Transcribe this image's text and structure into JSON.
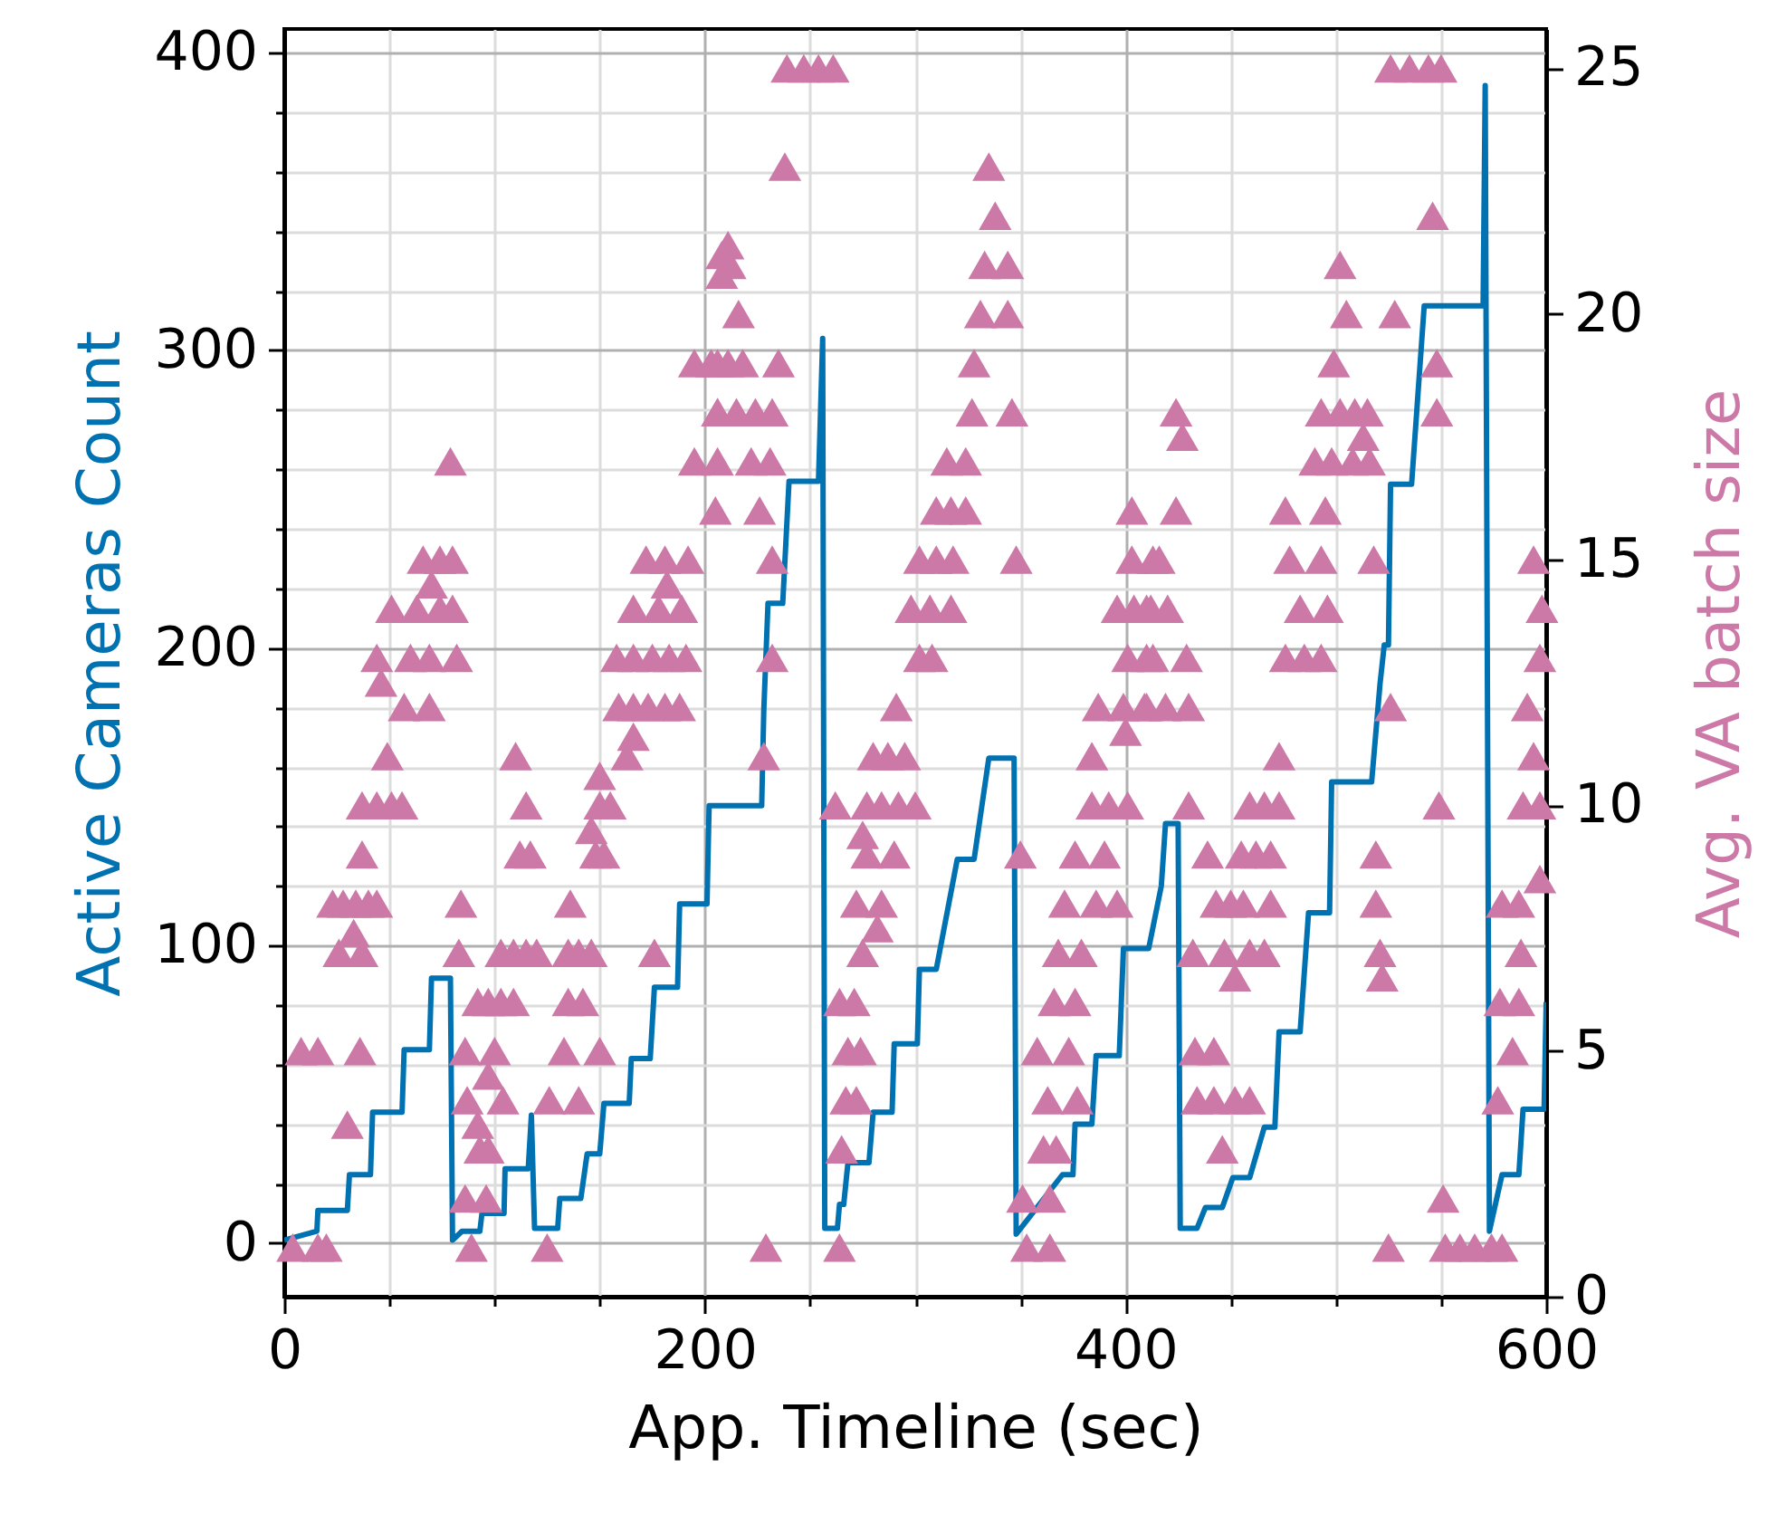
{
  "chart_data": {
    "type": "line",
    "xlabel": "App. Timeline (sec)",
    "ylabel": "Active Cameras Count",
    "y2label": "Avg. VA batch size",
    "xlim": [
      0,
      600
    ],
    "xticks": [
      0,
      {
        "value": 50,
        "label": null
      },
      {
        "value": 100,
        "label": null
      },
      {
        "value": 150,
        "label": null
      },
      200,
      {
        "value": 250,
        "label": null
      },
      {
        "value": 300,
        "label": null
      },
      {
        "value": 350,
        "label": null
      },
      400,
      {
        "value": 450,
        "label": null
      },
      {
        "value": 500,
        "label": null
      },
      {
        "value": 550,
        "label": null
      },
      600
    ],
    "ylim": [
      -18,
      408
    ],
    "yticks": [
      0,
      {
        "value": 20,
        "label": null
      },
      {
        "value": 40,
        "label": null
      },
      {
        "value": 60,
        "label": null
      },
      {
        "value": 80,
        "label": null
      },
      100,
      {
        "value": 120,
        "label": null
      },
      {
        "value": 140,
        "label": null
      },
      {
        "value": 160,
        "label": null
      },
      {
        "value": 180,
        "label": null
      },
      200,
      {
        "value": 220,
        "label": null
      },
      {
        "value": 240,
        "label": null
      },
      {
        "value": 260,
        "label": null
      },
      {
        "value": 280,
        "label": null
      },
      300,
      {
        "value": 320,
        "label": null
      },
      {
        "value": 340,
        "label": null
      },
      {
        "value": 360,
        "label": null
      },
      {
        "value": 380,
        "label": null
      },
      400
    ],
    "y2lim": [
      0,
      25.8
    ],
    "y2ticks": [
      0,
      5,
      10,
      15,
      20,
      25
    ],
    "grid": true,
    "series": [
      {
        "color": "#0072b2",
        "x": [
          0,
          15.5,
          16,
          30,
          31,
          41,
          42,
          56,
          57,
          69,
          70,
          79,
          80,
          84.5,
          93,
          94,
          104.5,
          105,
          116,
          117.5,
          119,
          130,
          131,
          141,
          144,
          150,
          152,
          164,
          165,
          174,
          176,
          187,
          188,
          201,
          202,
          227,
          228,
          230,
          237,
          240,
          254,
          256,
          257,
          263,
          264,
          266,
          268,
          278,
          280,
          289,
          290,
          301,
          302,
          310,
          320,
          328,
          335,
          347,
          348,
          370,
          375,
          376,
          384,
          386,
          397,
          399,
          411,
          417,
          419,
          425,
          426,
          434,
          438,
          446,
          451,
          459,
          466,
          471,
          473,
          483,
          487,
          497,
          498,
          517,
          521,
          523,
          525,
          526,
          536,
          542,
          570,
          571,
          573,
          579,
          587,
          589,
          599,
          600
        ],
        "values": [
          1,
          4,
          11,
          11,
          23,
          23,
          44,
          44,
          65,
          65,
          89,
          89,
          1,
          4,
          4,
          10,
          10,
          25,
          25,
          43,
          5,
          5,
          15,
          15,
          30,
          30,
          47,
          47,
          62,
          62,
          86,
          86,
          114,
          114,
          147,
          147,
          179,
          215,
          215,
          256,
          256,
          304,
          5,
          5,
          13,
          13,
          27,
          27,
          44,
          44,
          67,
          67,
          92,
          92,
          129,
          129,
          163,
          163,
          3,
          23,
          23,
          40,
          40,
          63,
          63,
          99,
          99,
          120,
          141,
          141,
          5,
          5,
          12,
          12,
          22,
          22,
          39,
          39,
          71,
          71,
          111,
          111,
          155,
          155,
          188,
          201,
          201,
          255,
          255,
          315,
          315,
          389,
          4,
          23,
          23,
          45,
          45,
          81
        ]
      },
      {
        "type": "scatter",
        "axis": "y2",
        "color": "#cc79a7",
        "marker": "triangle",
        "x": [
          4,
          16,
          20,
          89,
          125,
          86,
          96,
          93,
          97,
          30,
          92,
          87,
          104,
          126,
          140,
          97,
          8,
          16,
          36,
          86,
          100,
          133,
          150,
          92,
          97,
          103,
          109,
          135,
          142,
          26,
          37,
          83,
          103,
          109,
          115,
          120,
          135,
          140,
          146,
          176,
          33,
          23,
          28,
          34,
          40,
          44,
          84,
          136,
          37,
          112,
          117,
          148,
          152,
          146,
          37,
          44,
          51,
          56,
          115,
          150,
          155,
          150,
          49,
          110,
          163,
          166,
          57,
          69,
          159,
          166,
          173,
          181,
          188,
          46,
          44,
          60,
          69,
          82,
          158,
          166,
          175,
          183,
          191,
          51,
          63,
          74,
          80,
          166,
          178,
          189,
          70,
          182,
          66,
          74,
          80,
          172,
          181,
          192,
          205,
          79,
          195,
          206,
          206,
          195,
          206,
          208,
          208,
          239,
          247,
          254,
          261,
          238,
          335,
          338,
          211,
          212,
          333,
          344,
          216,
          331,
          344,
          203,
          211,
          218,
          235,
          328,
          206,
          215,
          224,
          232,
          327,
          346,
          222,
          231,
          315,
          324,
          226,
          310,
          317,
          324,
          403,
          232,
          302,
          310,
          318,
          348,
          403,
          413,
          298,
          307,
          317,
          396,
          404,
          412,
          232,
          302,
          308,
          401,
          410,
          291,
          387,
          399,
          409,
          400,
          228,
          280,
          287,
          295,
          384,
          262,
          277,
          284,
          292,
          300,
          384,
          392,
          401,
          275,
          277,
          290,
          350,
          376,
          390,
          272,
          284,
          371,
          386,
          396,
          282,
          275,
          368,
          379,
          264,
          271,
          366,
          376,
          268,
          274,
          358,
          373,
          267,
          272,
          363,
          377,
          265,
          361,
          367,
          351,
          364,
          229,
          264,
          353,
          364,
          413,
          429,
          476,
          485,
          493,
          597,
          410,
          419,
          430,
          526,
          591,
          473,
          594,
          430,
          459,
          466,
          473,
          549,
          589,
          597,
          439,
          455,
          462,
          469,
          519,
          597,
          443,
          450,
          456,
          469,
          519,
          579,
          587,
          432,
          447,
          459,
          466,
          521,
          588,
          452,
          522,
          578,
          587,
          433,
          442,
          584,
          434,
          442,
          452,
          459,
          577,
          446,
          551,
          525,
          552,
          559,
          566,
          574,
          579,
          526,
          535,
          544,
          550,
          546,
          502,
          505,
          528,
          499,
          548,
          424,
          493,
          502,
          509,
          515,
          548,
          427,
          513,
          490,
          498,
          508,
          516,
          424,
          476,
          495,
          416,
          478,
          493,
          518,
          594,
          410,
          420,
          483,
          496,
          598
        ],
        "values": [
          1,
          1,
          1,
          1,
          1,
          2,
          2,
          3,
          3,
          3.5,
          3.5,
          4,
          4,
          4,
          4,
          4.5,
          5,
          5,
          5,
          5,
          5,
          5,
          5,
          6,
          6,
          6,
          6,
          6,
          6,
          7,
          7,
          7,
          7,
          7,
          7,
          7,
          7,
          7,
          7,
          7,
          7.4,
          8,
          8,
          8,
          8,
          8,
          8,
          8,
          9,
          9,
          9,
          9,
          9,
          9.5,
          10,
          10,
          10,
          10,
          10,
          10,
          10,
          10.6,
          11,
          11,
          11,
          11.4,
          12,
          12,
          12,
          12,
          12,
          12,
          12,
          12.5,
          13,
          13,
          13,
          13,
          13,
          13,
          13,
          13,
          13,
          14,
          14,
          14,
          14,
          14,
          14,
          14,
          14.5,
          14.5,
          15,
          15,
          15,
          15,
          15,
          15,
          16,
          17,
          17,
          17,
          18,
          19,
          19,
          20.8,
          21.2,
          25,
          25,
          25,
          25,
          23,
          23,
          22,
          21.4,
          21,
          21,
          21,
          20,
          20,
          20,
          19,
          19,
          19,
          19,
          19,
          18,
          18,
          18,
          18,
          18,
          18,
          17,
          17,
          17,
          17,
          16,
          16,
          16,
          16,
          16,
          15,
          15,
          15,
          15,
          15,
          15,
          15,
          14,
          14,
          14,
          14,
          14,
          14,
          13,
          13,
          13,
          13,
          13,
          12,
          12,
          12,
          12,
          11.5,
          11,
          11,
          11,
          11,
          11,
          10,
          10,
          10,
          10,
          10,
          10,
          10,
          10,
          9.4,
          9,
          9,
          9,
          9,
          9,
          8,
          8,
          8,
          8,
          8,
          7.5,
          7,
          7,
          7,
          6,
          6,
          6,
          6,
          5,
          5,
          5,
          5,
          4,
          4,
          4,
          4,
          3,
          3,
          3,
          2,
          2,
          1,
          1,
          1,
          1,
          13,
          13,
          13,
          13,
          13,
          13,
          12,
          12,
          12,
          12,
          12,
          11,
          11,
          10,
          10,
          10,
          10,
          10,
          10,
          10,
          9,
          9,
          9,
          9,
          9,
          8.5,
          8,
          8,
          8,
          8,
          8,
          8,
          8,
          7,
          7,
          7,
          7,
          7,
          7,
          6.5,
          6.5,
          6,
          6,
          5,
          5,
          5,
          4,
          4,
          4,
          4,
          4,
          3,
          2,
          1,
          1,
          1,
          1,
          1,
          1,
          25,
          25,
          25,
          25,
          22,
          21,
          20,
          20,
          19,
          19,
          18,
          18,
          18,
          18,
          18,
          18,
          17.5,
          17.5,
          17,
          17,
          17,
          17,
          16,
          16,
          16,
          15,
          15,
          15,
          15,
          15,
          14,
          14,
          14,
          14,
          14
        ]
      }
    ]
  }
}
